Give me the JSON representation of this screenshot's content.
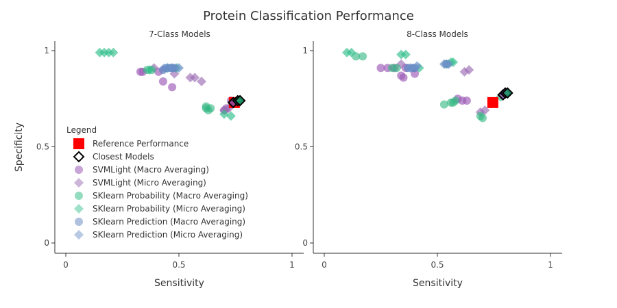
{
  "chart_data": {
    "type": "scatter",
    "title": "Protein Classification Performance",
    "legend": {
      "title": "Legend",
      "placement": "bottom-left of left panel",
      "entries": [
        {
          "label": "Reference Performance",
          "symbol": "square",
          "color": "#ff0000"
        },
        {
          "label": "Closest Models",
          "symbol": "diamond-open",
          "color": "#000000"
        },
        {
          "label": "SVMLight (Macro Averaging)",
          "symbol": "circle",
          "color": "#9b59b6"
        },
        {
          "label": "SVMLight (Micro Averaging)",
          "symbol": "diamond",
          "color": "#a279b8"
        },
        {
          "label": "SKlearn Probability (Macro Averaging)",
          "symbol": "circle",
          "color": "#3dbf8a"
        },
        {
          "label": "SKlearn Probability (Micro Averaging)",
          "symbol": "diamond",
          "color": "#4fc99a"
        },
        {
          "label": "SKlearn Prediction (Macro Averaging)",
          "symbol": "circle",
          "color": "#6f8ec4"
        },
        {
          "label": "SKlearn Prediction (Micro Averaging)",
          "symbol": "diamond",
          "color": "#7d9ccf"
        }
      ]
    },
    "panels": [
      {
        "subtitle": "7-Class Models",
        "xlabel": "Sensitivity",
        "ylabel": "Specificity",
        "xlim": [
          -0.05,
          1.0
        ],
        "ylim": [
          -0.05,
          1.05
        ],
        "xticks": [
          "0",
          "0.5",
          "1"
        ],
        "yticks": [
          "0",
          "0.5",
          "1"
        ],
        "series": [
          {
            "group": "svm_macro",
            "points": [
              [
                0.33,
                0.89
              ],
              [
                0.34,
                0.89
              ],
              [
                0.41,
                0.89
              ],
              [
                0.43,
                0.84
              ],
              [
                0.47,
                0.81
              ],
              [
                0.7,
                0.69
              ],
              [
                0.71,
                0.7
              ],
              [
                0.73,
                0.74
              ]
            ]
          },
          {
            "group": "svm_micro",
            "points": [
              [
                0.39,
                0.91
              ],
              [
                0.48,
                0.88
              ],
              [
                0.55,
                0.86
              ],
              [
                0.57,
                0.86
              ],
              [
                0.6,
                0.84
              ],
              [
                0.7,
                0.69
              ],
              [
                0.72,
                0.7
              ]
            ]
          },
          {
            "group": "skp_macro",
            "points": [
              [
                0.36,
                0.9
              ],
              [
                0.38,
                0.9
              ],
              [
                0.62,
                0.71
              ],
              [
                0.62,
                0.7
              ],
              [
                0.63,
                0.69
              ],
              [
                0.64,
                0.7
              ]
            ]
          },
          {
            "group": "skp_micro",
            "points": [
              [
                0.15,
                0.99
              ],
              [
                0.17,
                0.99
              ],
              [
                0.19,
                0.99
              ],
              [
                0.21,
                0.99
              ],
              [
                0.37,
                0.9
              ],
              [
                0.45,
                0.91
              ],
              [
                0.49,
                0.91
              ],
              [
                0.7,
                0.67
              ],
              [
                0.73,
                0.66
              ],
              [
                0.76,
                0.74
              ]
            ]
          },
          {
            "group": "skpred_macro",
            "points": [
              [
                0.43,
                0.9
              ],
              [
                0.44,
                0.91
              ],
              [
                0.46,
                0.91
              ],
              [
                0.47,
                0.91
              ],
              [
                0.48,
                0.91
              ]
            ]
          },
          {
            "group": "skpred_micro",
            "points": [
              [
                0.45,
                0.91
              ],
              [
                0.47,
                0.91
              ],
              [
                0.5,
                0.91
              ]
            ]
          },
          {
            "group": "reference",
            "points": [
              [
                0.745,
                0.73
              ]
            ]
          },
          {
            "group": "closest",
            "points": [
              [
                0.74,
                0.73
              ],
              [
                0.76,
                0.74
              ],
              [
                0.77,
                0.74
              ]
            ]
          }
        ]
      },
      {
        "subtitle": "8-Class Models",
        "xlabel": "Sensitivity",
        "ylabel": "",
        "xlim": [
          -0.05,
          1.05
        ],
        "ylim": [
          -0.05,
          1.05
        ],
        "xticks": [
          "0",
          "0.5",
          "1"
        ],
        "yticks": [
          "0",
          "0.5",
          "1"
        ],
        "series": [
          {
            "group": "svm_macro",
            "points": [
              [
                0.25,
                0.91
              ],
              [
                0.28,
                0.91
              ],
              [
                0.31,
                0.91
              ],
              [
                0.34,
                0.87
              ],
              [
                0.35,
                0.86
              ],
              [
                0.36,
                0.91
              ],
              [
                0.4,
                0.88
              ],
              [
                0.59,
                0.75
              ],
              [
                0.61,
                0.74
              ],
              [
                0.63,
                0.74
              ]
            ]
          },
          {
            "group": "svm_micro",
            "points": [
              [
                0.34,
                0.93
              ],
              [
                0.62,
                0.89
              ],
              [
                0.64,
                0.9
              ],
              [
                0.69,
                0.68
              ],
              [
                0.71,
                0.69
              ],
              [
                0.8,
                0.78
              ],
              [
                0.81,
                0.78
              ]
            ]
          },
          {
            "group": "skp_macro",
            "points": [
              [
                0.14,
                0.97
              ],
              [
                0.17,
                0.97
              ],
              [
                0.3,
                0.91
              ],
              [
                0.32,
                0.91
              ],
              [
                0.53,
                0.72
              ],
              [
                0.56,
                0.73
              ],
              [
                0.57,
                0.73
              ],
              [
                0.58,
                0.74
              ],
              [
                0.69,
                0.66
              ],
              [
                0.7,
                0.65
              ]
            ]
          },
          {
            "group": "skp_micro",
            "points": [
              [
                0.1,
                0.99
              ],
              [
                0.12,
                0.99
              ],
              [
                0.34,
                0.98
              ],
              [
                0.36,
                0.98
              ],
              [
                0.42,
                0.91
              ],
              [
                0.54,
                0.93
              ],
              [
                0.56,
                0.94
              ],
              [
                0.57,
                0.94
              ],
              [
                0.78,
                0.76
              ]
            ]
          },
          {
            "group": "skpred_macro",
            "points": [
              [
                0.37,
                0.91
              ],
              [
                0.39,
                0.91
              ],
              [
                0.4,
                0.91
              ],
              [
                0.54,
                0.93
              ]
            ]
          },
          {
            "group": "skpred_micro",
            "points": [
              [
                0.38,
                0.91
              ],
              [
                0.41,
                0.92
              ],
              [
                0.53,
                0.93
              ],
              [
                0.55,
                0.93
              ]
            ]
          },
          {
            "group": "reference",
            "points": [
              [
                0.745,
                0.73
              ]
            ]
          },
          {
            "group": "closest",
            "points": [
              [
                0.79,
                0.77
              ],
              [
                0.8,
                0.78
              ],
              [
                0.81,
                0.78
              ]
            ]
          }
        ]
      }
    ]
  }
}
